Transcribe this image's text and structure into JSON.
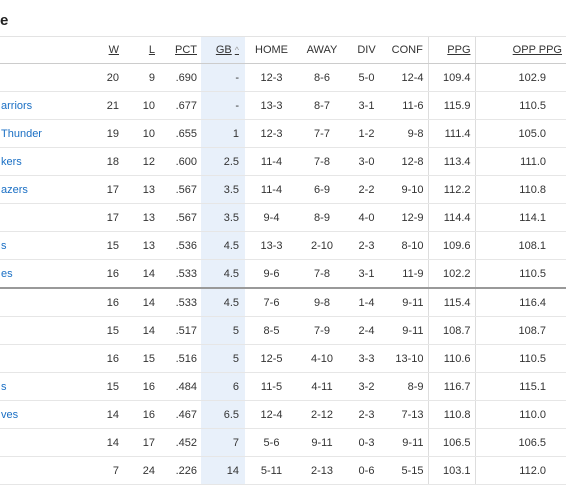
{
  "header": {
    "title": "e"
  },
  "table": {
    "columns": [
      "W",
      "L",
      "PCT",
      "GB",
      "HOME",
      "AWAY",
      "DIV",
      "CONF",
      "PPG",
      "OPP PPG"
    ],
    "rows": [
      [
        null,
        "20",
        "9",
        ".690",
        "-",
        "12-3",
        "8-6",
        "5-0",
        "12-4",
        "109.4",
        "102.9"
      ],
      [
        "arriors",
        "21",
        "10",
        ".677",
        "-",
        "13-3",
        "8-7",
        "3-1",
        "11-6",
        "115.9",
        "110.5"
      ],
      [
        "Thunder",
        "19",
        "10",
        ".655",
        "1",
        "12-3",
        "7-7",
        "1-2",
        "9-8",
        "111.4",
        "105.0"
      ],
      [
        "kers",
        "18",
        "12",
        ".600",
        "2.5",
        "11-4",
        "7-8",
        "3-0",
        "12-8",
        "113.4",
        "111.0"
      ],
      [
        "azers",
        "17",
        "13",
        ".567",
        "3.5",
        "11-4",
        "6-9",
        "2-2",
        "9-10",
        "112.2",
        "110.8"
      ],
      [
        null,
        "17",
        "13",
        ".567",
        "3.5",
        "9-4",
        "8-9",
        "4-0",
        "12-9",
        "114.4",
        "114.1"
      ],
      [
        "s",
        "15",
        "13",
        ".536",
        "4.5",
        "13-3",
        "2-10",
        "2-3",
        "8-10",
        "109.6",
        "108.1"
      ],
      [
        "es",
        "16",
        "14",
        ".533",
        "4.5",
        "9-6",
        "7-8",
        "3-1",
        "11-9",
        "102.2",
        "110.5"
      ],
      [
        null,
        "16",
        "14",
        ".533",
        "4.5",
        "7-6",
        "9-8",
        "1-4",
        "9-11",
        "115.4",
        "116.4"
      ],
      [
        null,
        "15",
        "14",
        ".517",
        "5",
        "8-5",
        "7-9",
        "2-4",
        "9-11",
        "108.7",
        "108.7"
      ],
      [
        null,
        "16",
        "15",
        ".516",
        "5",
        "12-5",
        "4-10",
        "3-3",
        "13-10",
        "110.6",
        "110.5"
      ],
      [
        "s",
        "15",
        "16",
        ".484",
        "6",
        "11-5",
        "4-11",
        "3-2",
        "8-9",
        "116.7",
        "115.1"
      ],
      [
        "ves",
        "14",
        "16",
        ".467",
        "6.5",
        "12-4",
        "2-12",
        "2-3",
        "7-13",
        "110.8",
        "110.0"
      ],
      [
        null,
        "14",
        "17",
        ".452",
        "7",
        "5-6",
        "9-11",
        "0-3",
        "9-11",
        "106.5",
        "106.5"
      ],
      [
        null,
        "7",
        "24",
        ".226",
        "14",
        "5-11",
        "2-13",
        "0-6",
        "5-15",
        "103.1",
        "112.0"
      ]
    ]
  }
}
